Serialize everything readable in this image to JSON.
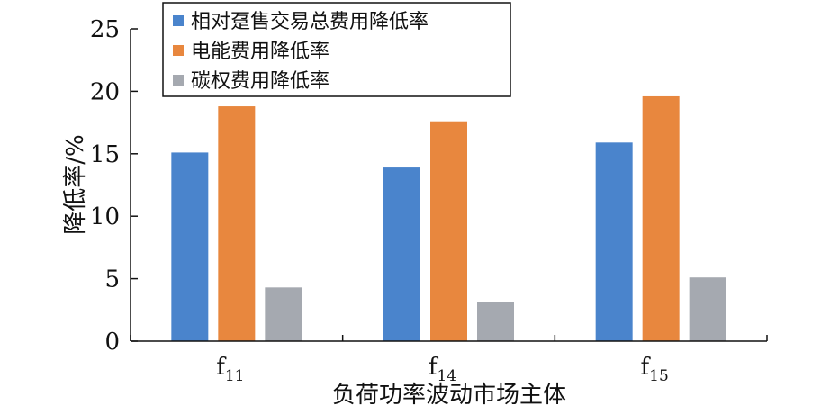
{
  "chart_data": {
    "type": "bar",
    "categories": [
      {
        "base": "f",
        "sub": "11"
      },
      {
        "base": "f",
        "sub": "14"
      },
      {
        "base": "f",
        "sub": "15"
      }
    ],
    "series": [
      {
        "name": "相对趸售交易总费用降低率",
        "color": "#4a84cc",
        "values": [
          15.1,
          13.9,
          15.9
        ]
      },
      {
        "name": "电能费用降低率",
        "color": "#e8873e",
        "values": [
          18.8,
          17.6,
          19.6
        ]
      },
      {
        "name": "碳权费用降低率",
        "color": "#a5a9b0",
        "values": [
          4.3,
          3.1,
          5.1
        ]
      }
    ],
    "xlabel": "负荷功率波动市场主体",
    "ylabel": "降低率/%",
    "ylim": [
      0,
      25
    ],
    "yticks": [
      0,
      5,
      10,
      15,
      20,
      25
    ],
    "grid": false,
    "legend_position": "top-left"
  }
}
